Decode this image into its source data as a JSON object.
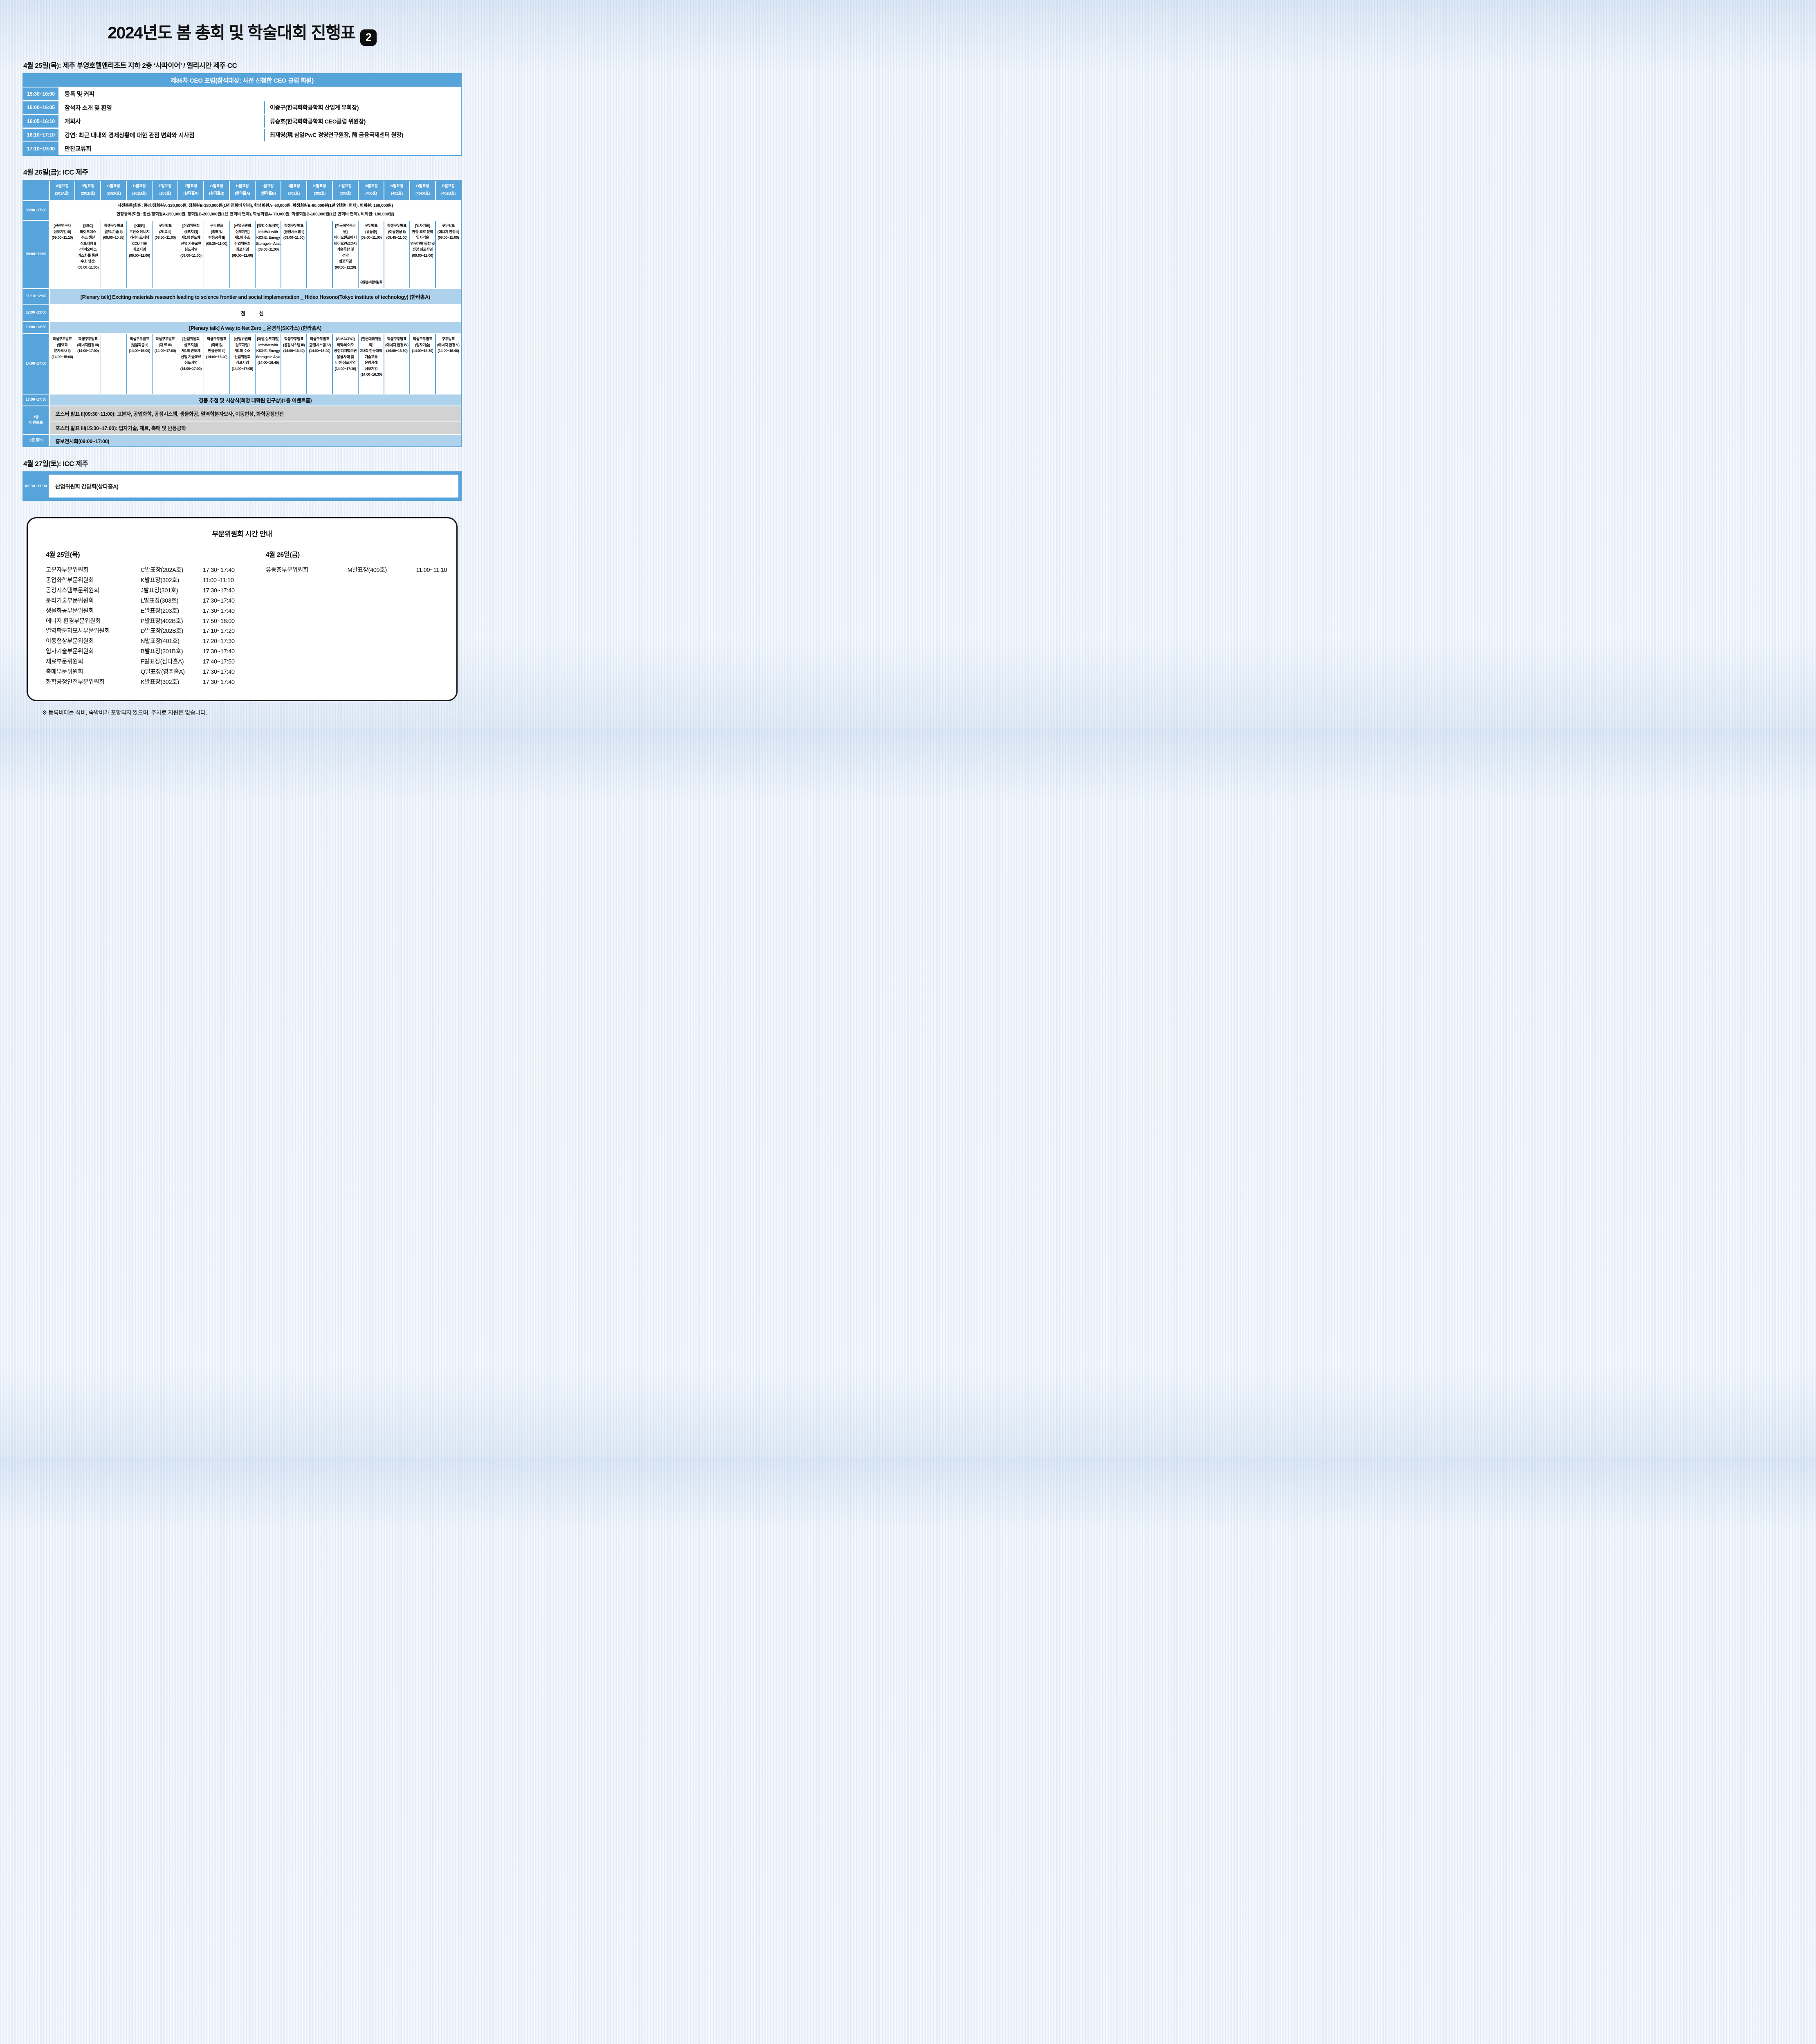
{
  "page": {
    "title": "2024년도 봄 총회 및 학술대회 진행표",
    "badge": "2"
  },
  "april25": {
    "heading": "4월 25일(목): 제주 부영호텔앤리조트 지하 2층 ‘사파이어’ / 엘리시안 제주 CC",
    "forum_header": "제36차 CEO 포럼(참석대상: 사전 신청한 CEO 클럽 회원)",
    "rows": [
      {
        "time": "15:30~16:00",
        "content": "등록 및 커피",
        "speaker": ""
      },
      {
        "time": "16:00~16:05",
        "content": "참석자 소개 및 환영",
        "speaker": "이종구(한국화학공학회 산업계 부회장)"
      },
      {
        "time": "16:05~16:10",
        "content": "개회사",
        "speaker": "류승호(한국화학공학회 CEO클럽 위원장)"
      },
      {
        "time": "16:10~17:10",
        "content": "강연: 최근 대내외 경제상황에 대한 관점 변화와 시사점",
        "speaker": "최재영(現 삼일PwC 경영연구원장, 煎 금융국제센터 원장)"
      },
      {
        "time": "17:10~19:00",
        "content": "만찬교류회",
        "speaker": ""
      }
    ]
  },
  "april26": {
    "heading": "4월 26일(금): ICC 제주",
    "halls": [
      {
        "name": "A발표장",
        "room": "(201A호)"
      },
      {
        "name": "B발표장",
        "room": "(201B호)"
      },
      {
        "name": "C발표장",
        "room": "(202A호)"
      },
      {
        "name": "D발표장",
        "room": "(202B호)"
      },
      {
        "name": "E발표장",
        "room": "(203호)"
      },
      {
        "name": "F발표장",
        "room": "(삼다홀A)"
      },
      {
        "name": "G발표장",
        "room": "(삼다홀B)"
      },
      {
        "name": "H발표장",
        "room": "(한라홀A)"
      },
      {
        "name": "I발표장",
        "room": "(한라홀B)"
      },
      {
        "name": "J발표장",
        "room": "(301호)"
      },
      {
        "name": "K발표장",
        "room": "(302호)"
      },
      {
        "name": "L발표장",
        "room": "(303호)"
      },
      {
        "name": "M발표장",
        "room": "(400호)"
      },
      {
        "name": "N발표장",
        "room": "(401호)"
      },
      {
        "name": "O발표장",
        "room": "(402A호)"
      },
      {
        "name": "P발표장",
        "room": "(402B호)"
      }
    ],
    "registration": {
      "time": "08:00~17:00",
      "line1": "사전등록(회원: 종신/정회원A-130,000원, 정회원B-180,000원(1년 연회비 면제), 학생회원A- 60,000원, 학생회원B-90,000원(1년 연회비 면제), 비회원: 160,000원)",
      "line2": "현장등록(회원: 종신/정회원A-150,000원, 정회원B-200,000원(1년 연회비 면제), 학생회원A- 70,000원, 학생회원B-100,000원(1년 연회비 면제), 비회원: 180,000원)"
    },
    "morning": {
      "time": "09:00~11:00",
      "cells": [
        "[신진연구자\n심포지엄 III]\n(09:00~11:10)",
        "[ERC]\n바이오매스\n수소 생산\n심포지엄 II\n(바이오매스\n가스화를 통한\n수소 생산)\n(09:00~11:00)",
        "학생구두발표\n(분리기술 II)\n(09:00~10:55)",
        "[KIER]\n무탄소 에너지\n캐리어로서의\nCCU 기술\n심포지엄\n(09:00~11:00)",
        "구두발표\n(재 료 II)\n(08:50~11:00)",
        "[산업위원회\n심포지엄]\n제1회 반도체\n산업 기술교류\n심포지엄\n(09:00~11:00)",
        "구두발표\n(촉매 및\n반응공학 II)\n(08:30~11:00)",
        "[산업위원회\n심포지엄]\n제1회 수소\n산업위원회\n심포지엄\n(09:00~11:00)",
        "[특별 심포지엄]\nInfoMat with\nKIChE: Energy\nStorage in Asia\n(09:00~11:00)",
        "학생구두발표\n(공정시스템 II)\n(09:00~11:00)",
        "",
        "[한국석유관리원]\n바이오원료에서\n바이오연료까지\n기술동향 및\n전망\n심포지엄\n(08:50~11:20)",
        "",
        "학생구두발표\n(이동현상 II)\n(08:45~11:00)",
        "[입자기술]\n환경·의료 분야\n입자기술\n연구개발 동향 및\n전망 심포지엄\n(09:00~11:00)",
        "구두발표\n(에너지 환경 II)\n(09:00~11:00)"
      ],
      "m_main": "구두발표\n(유동층)\n(09:00~11:00)",
      "m_sub": "유동층부문위원회"
    },
    "plenary1": {
      "time": "11:10~12:00",
      "text": "[Plenary talk] Exciting materials research leading to science frontier and social implementation _ Hideo Hosono(Tokyo institute of technology) (한라홀A)"
    },
    "lunch": {
      "time": "12:00~13:00",
      "text": "점 심"
    },
    "plenary2": {
      "time": "13:00~13:50",
      "text": "[Plenary talk] A way to Net Zero _ 윤병석(SK가스) (한라홀A)"
    },
    "afternoon": {
      "time": "14:00~17:00",
      "cells": [
        "학생구두발표\n(열역학\n분자모사 II)\n(14:00~15:00)",
        "학생구두발표\n(에너지환경 III)\n(14:00~17:00)",
        "",
        "학생구두발표\n(생물화공 II)\n(14:00~15:00)",
        "학생구두발표\n(재 료 III)\n(14:00~17:00)",
        "[산업위원회\n심포지엄]\n제1회 반도체\n산업 기술교류\n심포지엄\n(14:00~17:00)",
        "학생구두발표\n(촉매 및\n반응공학 III)\n(14:00~16:40)",
        "[산업위원회\n심포지엄]\n제1회 수소\n산업위원회\n심포지엄\n(14:00~17:05)",
        "[특별 심포지엄]\nInfoMat with\nKIChE: Energy\nStorage in Asia\n(14:00~16:45)",
        "학생구두발표\n(공정시스템 III)\n(14:00~16:40)",
        "학생구두발표\n(공정시스템 IV)\n(14:00~16:40)",
        "[SIMACRO]\n화학/바이오\n공정디지털트윈\n응용사례 및\n비전 심포지엄\n(14:00~17:10)",
        "[전문대학위원회]\n제8회 전문대학\n기술교육\n운영사례\n심포지엄\n(14:00~16:30)",
        "학생구두발표\n(에너지 환경 IV)\n(14:00~16:50)",
        "학생구두발표\n(입자기술)\n(14:00~15:30)",
        "구두발표\n(에너지 환경 V)\n(14:00~16:40)"
      ]
    },
    "raffle": {
      "time": "17:00~17:30",
      "text": "경품 추첨 및 시상식(회명 대학원 연구상)(1층 이벤트홀)"
    },
    "event_hall": {
      "label": "1층\n이벤트홀",
      "poster2": "포스터 발표 II(09:30~11:00): 고분자, 공업화학, 공정시스템, 생물화공, 열역학분자모사, 이동현상, 화학공정안전",
      "poster3": "포스터 발표 III(15:30~17:00): 입자기술, 재료, 촉매 및 반응공학"
    },
    "lobby": {
      "label": "3층 로비",
      "text": "홍보전시회(09:00~17:00)"
    }
  },
  "april27": {
    "heading": "4월 27일(토): ICC 제주",
    "time": "09:30~11:00",
    "text": "산업위원회 간담회(삼다홀A)"
  },
  "committee_panel": {
    "title": "부문위원회 시간 안내",
    "left_heading": "4월 25일(목)",
    "right_heading": "4월 26일(금)",
    "left_rows": [
      {
        "name": "고분자부문위원회",
        "venue": "C발표장(202A호)",
        "time": "17:30~17:40"
      },
      {
        "name": "공업화학부문위원회",
        "venue": "K발표장(302호)",
        "time": "11:00~11:10"
      },
      {
        "name": "공정시스템부문위원회",
        "venue": "J발표장(301호)",
        "time": "17:30~17:40"
      },
      {
        "name": "분리기술부문위원회",
        "venue": "L발표장(303호)",
        "time": "17:30~17:40"
      },
      {
        "name": "생물화공부문위원회",
        "venue": "E발표장(203호)",
        "time": "17:30~17:40"
      },
      {
        "name": "에너지 환경부문위원회",
        "venue": "P발표장(402B호)",
        "time": "17:50~18:00"
      },
      {
        "name": "열역학분자모사부문위원회",
        "venue": "D발표장(202B호)",
        "time": "17:10~17:20"
      },
      {
        "name": "이동현상부문위원회",
        "venue": "N발표장(401호)",
        "time": "17:20~17:30"
      },
      {
        "name": "입자기술부문위원회",
        "venue": "B발표장(201B호)",
        "time": "17:30~17:40"
      },
      {
        "name": "재료부문위원회",
        "venue": "F발표장(삼다홀A)",
        "time": "17:40~17:50"
      },
      {
        "name": "촉매부문위원회",
        "venue": "Q발표장(영주홀A)",
        "time": "17:30~17:40"
      },
      {
        "name": "화학공정안전부문위원회",
        "venue": "K발표장(302호)",
        "time": "17:30~17:40"
      }
    ],
    "right_rows": [
      {
        "name": "유동층부문위원회",
        "venue": "M발표장(400호)",
        "time": "11:00~11:10"
      }
    ],
    "footnote": "※ 등록비에는 식비, 숙박비가 포함되지 않으며, 주차료 지원은 없습니다."
  }
}
